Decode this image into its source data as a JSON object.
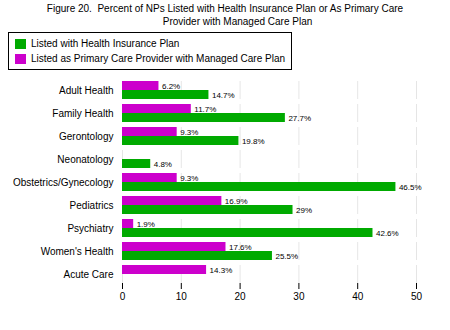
{
  "chart_data": {
    "type": "bar",
    "orientation": "horizontal",
    "title": "Figure 20.  Percent of NPs Listed with Health Insurance Plan or As Primary Care\n         Provider with Managed Care Plan",
    "categories": [
      "Adult Health",
      "Family Health",
      "Gerontology",
      "Neonatology",
      "Obstetrics/Gynecology",
      "Pediatrics",
      "Psychiatry",
      "Women's Health",
      "Acute Care"
    ],
    "series": [
      {
        "name": "Listed with Health Insurance Plan",
        "color": "#00aa00",
        "values": [
          14.7,
          27.7,
          19.8,
          4.8,
          46.5,
          29.0,
          42.6,
          25.5,
          0
        ],
        "value_labels": [
          "14.7%",
          "27.7%",
          "19.8%",
          "4.8%",
          "46.5%",
          "29%",
          "42.6%",
          "25.5%",
          null
        ]
      },
      {
        "name": "Listed as Primary Care Provider with Managed Care Plan",
        "color": "#cc00cc",
        "values": [
          6.2,
          11.7,
          9.3,
          0,
          9.3,
          16.9,
          1.9,
          17.6,
          14.3
        ],
        "value_labels": [
          "6.2%",
          "11.7%",
          "9.3%",
          null,
          "9.3%",
          "16.9%",
          "1.9%",
          "17.6%",
          "14.3%"
        ]
      }
    ],
    "xlim": [
      0,
      50
    ],
    "xticks": [
      0,
      10,
      20,
      30,
      40,
      50
    ],
    "grid": true,
    "legend": "upper left",
    "data_labels": true
  }
}
